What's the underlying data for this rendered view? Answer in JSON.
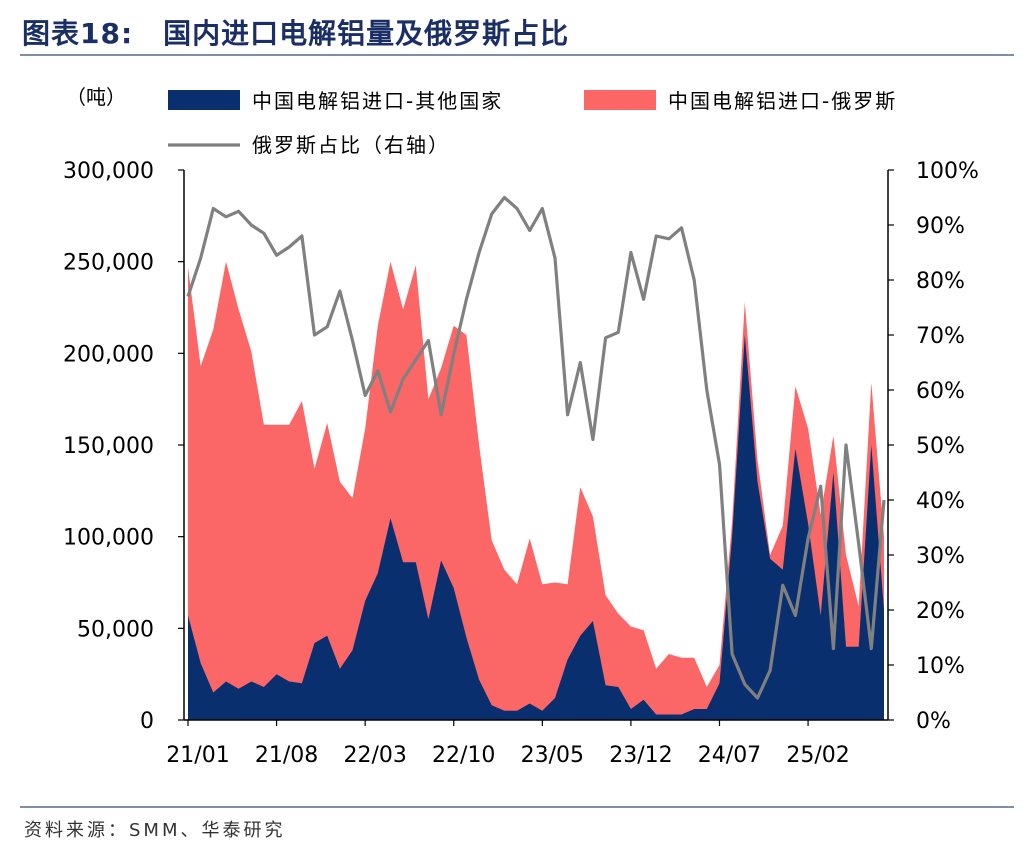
{
  "header": {
    "figure_label": "图表18:",
    "title": "国内进口电解铝量及俄罗斯占比"
  },
  "source": "资料来源：SMM、华泰研究",
  "colors": {
    "other_area": "#0a2f6e",
    "russia_area": "#fb6666",
    "ratio_line": "#808080",
    "title_text": "#1a2f66"
  },
  "chart_data": {
    "type": "area",
    "left_unit_label": "（吨）",
    "legend": [
      "中国电解铝进口-其他国家",
      "中国电解铝进口-俄罗斯",
      "俄罗斯占比（右轴）"
    ],
    "left_axis": {
      "min": 0,
      "max": 300000,
      "ticks": [
        0,
        50000,
        100000,
        150000,
        200000,
        250000,
        300000
      ],
      "tick_labels": [
        "0",
        "50,000",
        "100,000",
        "150,000",
        "200,000",
        "250,000",
        "300,000"
      ]
    },
    "right_axis": {
      "min": 0,
      "max": 1.0,
      "ticks": [
        0,
        0.1,
        0.2,
        0.3,
        0.4,
        0.5,
        0.6,
        0.7,
        0.8,
        0.9,
        1.0
      ],
      "tick_labels": [
        "0%",
        "10%",
        "20%",
        "30%",
        "40%",
        "50%",
        "60%",
        "70%",
        "80%",
        "90%",
        "100%"
      ]
    },
    "x_tick_labels": [
      "21/01",
      "21/08",
      "22/03",
      "22/10",
      "23/05",
      "23/12",
      "24/07",
      "25/02"
    ],
    "x_tick_months": [
      "2021-01",
      "2021-08",
      "2022-03",
      "2022-10",
      "2023-05",
      "2023-12",
      "2024-07",
      "2025-02"
    ],
    "months": [
      "2021-01",
      "2021-02",
      "2021-03",
      "2021-04",
      "2021-05",
      "2021-06",
      "2021-07",
      "2021-08",
      "2021-09",
      "2021-10",
      "2021-11",
      "2021-12",
      "2022-01",
      "2022-02",
      "2022-03",
      "2022-04",
      "2022-05",
      "2022-06",
      "2022-07",
      "2022-08",
      "2022-09",
      "2022-10",
      "2022-11",
      "2022-12",
      "2023-01",
      "2023-02",
      "2023-03",
      "2023-04",
      "2023-05",
      "2023-06",
      "2023-07",
      "2023-08",
      "2023-09",
      "2023-10",
      "2023-11",
      "2023-12",
      "2024-01",
      "2024-02",
      "2024-03",
      "2024-04",
      "2024-05",
      "2024-06",
      "2024-07",
      "2024-08",
      "2024-09",
      "2024-10",
      "2024-11",
      "2024-12",
      "2025-01",
      "2025-02",
      "2025-03",
      "2025-04",
      "2025-05",
      "2025-06",
      "2025-07",
      "2025-08"
    ],
    "series": [
      {
        "name": "中国电解铝进口-其他国家",
        "values": [
          57000,
          31000,
          15000,
          21000,
          17000,
          21000,
          18000,
          25000,
          21000,
          20000,
          42000,
          46000,
          28000,
          38000,
          65000,
          80000,
          110000,
          86000,
          86000,
          55000,
          87000,
          72000,
          45000,
          22000,
          8000,
          5000,
          5000,
          9000,
          5000,
          12000,
          33000,
          46000,
          54000,
          19000,
          18000,
          6000,
          11000,
          3000,
          3000,
          3000,
          6000,
          6000,
          20000,
          100000,
          210000,
          130000,
          88000,
          82000,
          148000,
          107000,
          57000,
          135000,
          40000,
          40000,
          150000,
          60000
        ]
      },
      {
        "name": "中国电解铝进口-俄罗斯",
        "values": [
          190000,
          162000,
          198000,
          229000,
          207000,
          180000,
          143000,
          136000,
          140000,
          154000,
          95000,
          116000,
          102000,
          83000,
          94000,
          135000,
          140000,
          138000,
          162000,
          120000,
          105000,
          143000,
          165000,
          128000,
          90000,
          77000,
          69000,
          90000,
          69000,
          63000,
          41000,
          81000,
          57000,
          49000,
          40000,
          45000,
          38000,
          25000,
          33000,
          31000,
          28000,
          12000,
          10000,
          8000,
          18000,
          12000,
          2000,
          24000,
          34000,
          52000,
          55000,
          20000,
          50000,
          22000,
          34000,
          40000
        ]
      },
      {
        "name": "俄罗斯占比（右轴）",
        "values": [
          0.77,
          0.84,
          0.93,
          0.915,
          0.925,
          0.9,
          0.885,
          0.845,
          0.86,
          0.88,
          0.7,
          0.715,
          0.78,
          0.69,
          0.59,
          0.635,
          0.56,
          0.62,
          0.655,
          0.69,
          0.555,
          0.665,
          0.765,
          0.85,
          0.92,
          0.95,
          0.93,
          0.89,
          0.93,
          0.84,
          0.555,
          0.65,
          0.51,
          0.695,
          0.705,
          0.85,
          0.765,
          0.88,
          0.875,
          0.895,
          0.8,
          0.6,
          0.465,
          0.12,
          0.065,
          0.04,
          0.09,
          0.245,
          0.19,
          0.33,
          0.425,
          0.13,
          0.5,
          0.32,
          0.13,
          0.4
        ]
      }
    ]
  }
}
